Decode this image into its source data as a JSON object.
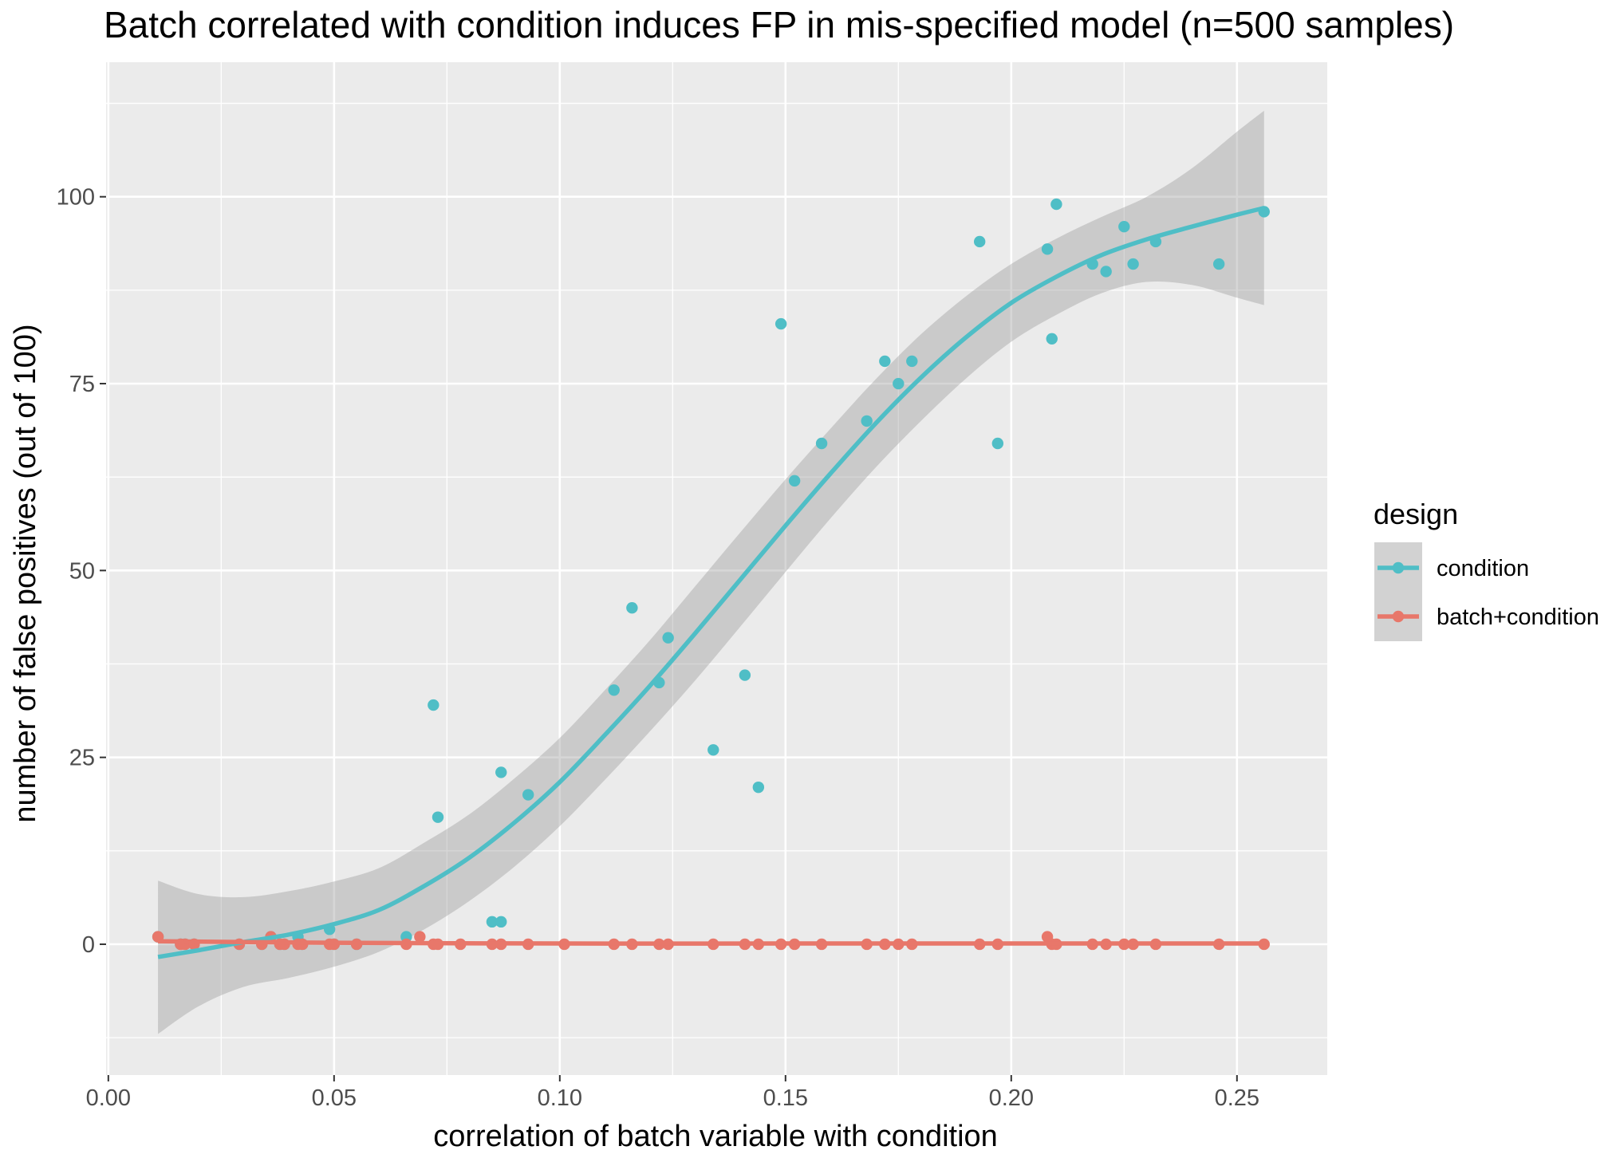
{
  "chart_data": {
    "type": "scatter",
    "title": "Batch correlated with condition induces FP in mis-specified model (n=500 samples)",
    "xlabel": "correlation of batch variable with condition",
    "ylabel": "number of false positives (out of 100)",
    "xlim": [
      -0.0005,
      0.27
    ],
    "ylim": [
      -17.5,
      118
    ],
    "xticks": [
      0.0,
      0.05,
      0.1,
      0.15,
      0.2,
      0.25
    ],
    "xtick_labels": [
      "0.00",
      "0.05",
      "0.10",
      "0.15",
      "0.20",
      "0.25"
    ],
    "yticks": [
      0,
      25,
      50,
      75,
      100
    ],
    "ytick_labels": [
      "0",
      "25",
      "50",
      "75",
      "100"
    ],
    "grid": true,
    "legend": {
      "title": "design",
      "position": "right",
      "entries": [
        "condition",
        "batch+condition"
      ]
    },
    "colors": {
      "panel_background": "#ebebeb",
      "grid": "#ffffff",
      "band": "#999999"
    },
    "series": [
      {
        "name": "condition",
        "color": "#4fbec6",
        "points": [
          [
            0.011,
            1
          ],
          [
            0.016,
            0
          ],
          [
            0.017,
            0
          ],
          [
            0.019,
            0
          ],
          [
            0.029,
            0
          ],
          [
            0.034,
            0
          ],
          [
            0.036,
            1
          ],
          [
            0.038,
            0
          ],
          [
            0.039,
            0
          ],
          [
            0.042,
            1
          ],
          [
            0.043,
            0
          ],
          [
            0.049,
            2
          ],
          [
            0.05,
            0
          ],
          [
            0.055,
            0
          ],
          [
            0.066,
            1
          ],
          [
            0.072,
            32
          ],
          [
            0.073,
            17
          ],
          [
            0.085,
            3
          ],
          [
            0.087,
            3
          ],
          [
            0.087,
            23
          ],
          [
            0.093,
            20
          ],
          [
            0.112,
            34
          ],
          [
            0.116,
            45
          ],
          [
            0.122,
            35
          ],
          [
            0.124,
            41
          ],
          [
            0.134,
            26
          ],
          [
            0.141,
            36
          ],
          [
            0.144,
            21
          ],
          [
            0.149,
            83
          ],
          [
            0.152,
            62
          ],
          [
            0.158,
            67
          ],
          [
            0.168,
            70
          ],
          [
            0.172,
            78
          ],
          [
            0.175,
            75
          ],
          [
            0.178,
            78
          ],
          [
            0.193,
            94
          ],
          [
            0.197,
            67
          ],
          [
            0.208,
            93
          ],
          [
            0.209,
            81
          ],
          [
            0.21,
            99
          ],
          [
            0.218,
            91
          ],
          [
            0.221,
            90
          ],
          [
            0.225,
            96
          ],
          [
            0.227,
            91
          ],
          [
            0.232,
            94
          ],
          [
            0.246,
            91
          ],
          [
            0.256,
            98
          ]
        ],
        "smooth": {
          "x": [
            0.011,
            0.02,
            0.03,
            0.04,
            0.05,
            0.06,
            0.07,
            0.08,
            0.09,
            0.1,
            0.11,
            0.12,
            0.13,
            0.14,
            0.15,
            0.16,
            0.17,
            0.18,
            0.19,
            0.2,
            0.21,
            0.22,
            0.23,
            0.24,
            0.25,
            0.256
          ],
          "y": [
            -1.7,
            -0.8,
            0.3,
            1.3,
            2.7,
            4.6,
            7.8,
            11.6,
            16.3,
            21.7,
            28.0,
            34.6,
            41.6,
            48.8,
            56.0,
            63.0,
            69.7,
            75.8,
            81.2,
            85.8,
            89.3,
            92.2,
            94.3,
            96.0,
            97.6,
            98.5
          ],
          "lower": [
            -12,
            -8.3,
            -5.7,
            -4.5,
            -3.0,
            -1.0,
            2.0,
            5.8,
            10.4,
            15.8,
            22.0,
            28.5,
            35.3,
            42.5,
            49.8,
            57.0,
            63.8,
            70.0,
            75.7,
            80.6,
            84.2,
            87.1,
            88.6,
            88.2,
            86.5,
            85.5
          ],
          "upper": [
            8.5,
            6.7,
            6.3,
            7.1,
            8.4,
            10.2,
            13.6,
            17.4,
            22.2,
            27.6,
            34.0,
            40.7,
            47.9,
            55.1,
            62.2,
            69.0,
            75.6,
            81.6,
            86.7,
            91.0,
            94.4,
            97.3,
            100.0,
            103.8,
            108.7,
            111.5
          ]
        }
      },
      {
        "name": "batch+condition",
        "color": "#e8776a",
        "points": [
          [
            0.011,
            1
          ],
          [
            0.016,
            0
          ],
          [
            0.017,
            0
          ],
          [
            0.019,
            0
          ],
          [
            0.029,
            0
          ],
          [
            0.034,
            0
          ],
          [
            0.036,
            1
          ],
          [
            0.038,
            0
          ],
          [
            0.039,
            0
          ],
          [
            0.042,
            0
          ],
          [
            0.043,
            0
          ],
          [
            0.049,
            0
          ],
          [
            0.05,
            0
          ],
          [
            0.055,
            0
          ],
          [
            0.066,
            0
          ],
          [
            0.069,
            1
          ],
          [
            0.072,
            0
          ],
          [
            0.073,
            0
          ],
          [
            0.078,
            0
          ],
          [
            0.085,
            0
          ],
          [
            0.087,
            0
          ],
          [
            0.093,
            0
          ],
          [
            0.101,
            0
          ],
          [
            0.112,
            0
          ],
          [
            0.116,
            0
          ],
          [
            0.122,
            0
          ],
          [
            0.124,
            0
          ],
          [
            0.134,
            0
          ],
          [
            0.141,
            0
          ],
          [
            0.144,
            0
          ],
          [
            0.149,
            0
          ],
          [
            0.152,
            0
          ],
          [
            0.158,
            0
          ],
          [
            0.168,
            0
          ],
          [
            0.172,
            0
          ],
          [
            0.175,
            0
          ],
          [
            0.178,
            0
          ],
          [
            0.193,
            0
          ],
          [
            0.197,
            0
          ],
          [
            0.208,
            1
          ],
          [
            0.209,
            0
          ],
          [
            0.21,
            0
          ],
          [
            0.218,
            0
          ],
          [
            0.221,
            0
          ],
          [
            0.225,
            0
          ],
          [
            0.227,
            0
          ],
          [
            0.232,
            0
          ],
          [
            0.246,
            0
          ],
          [
            0.256,
            0
          ]
        ],
        "smooth": {
          "x": [
            0.011,
            0.05,
            0.1,
            0.15,
            0.2,
            0.256
          ],
          "y": [
            0.4,
            0.2,
            0.1,
            0.1,
            0.1,
            0.1
          ],
          "lower": [
            0.1,
            0.0,
            0.0,
            0.0,
            0.0,
            0.0
          ],
          "upper": [
            0.7,
            0.4,
            0.2,
            0.2,
            0.2,
            0.2
          ]
        }
      }
    ]
  }
}
